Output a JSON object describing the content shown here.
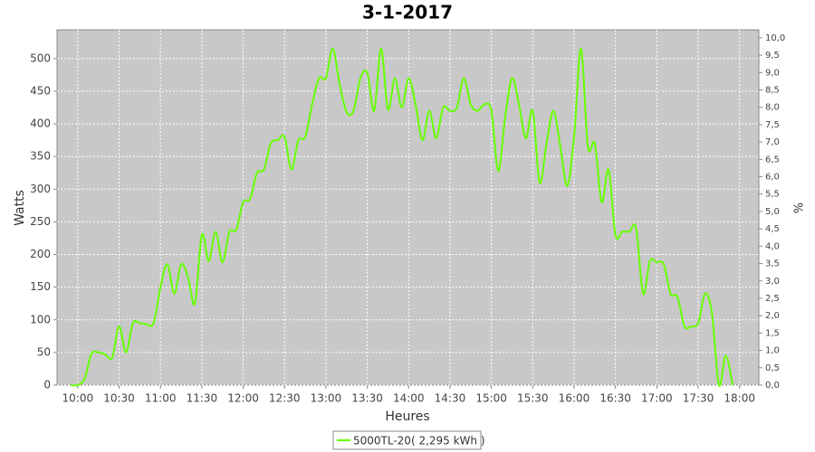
{
  "chart_data": {
    "type": "line",
    "title": "3-1-2017",
    "x_label": "Heures",
    "y_label": "Watts",
    "y2_label": "%",
    "x": [
      595,
      600,
      605,
      610,
      615,
      620,
      625,
      630,
      635,
      640,
      645,
      650,
      655,
      660,
      665,
      670,
      675,
      680,
      685,
      690,
      695,
      700,
      705,
      710,
      715,
      720,
      725,
      730,
      735,
      740,
      745,
      750,
      755,
      760,
      765,
      770,
      775,
      780,
      785,
      790,
      795,
      800,
      805,
      810,
      815,
      820,
      825,
      830,
      835,
      840,
      845,
      850,
      855,
      860,
      865,
      870,
      875,
      880,
      885,
      890,
      895,
      900,
      905,
      910,
      915,
      920,
      925,
      930,
      935,
      940,
      945,
      950,
      955,
      960,
      965,
      970,
      975,
      980,
      985,
      990,
      995,
      1000,
      1005,
      1010,
      1015,
      1020,
      1025,
      1030,
      1035,
      1040,
      1045,
      1050,
      1055,
      1060,
      1065,
      1070,
      1075
    ],
    "series": [
      {
        "name": "5000TL-20( 2,295 kWh )",
        "color": "#66ff00",
        "values": [
          0,
          0,
          10,
          48,
          50,
          47,
          42,
          90,
          50,
          95,
          95,
          93,
          95,
          150,
          185,
          140,
          185,
          165,
          125,
          230,
          190,
          235,
          188,
          235,
          238,
          280,
          285,
          325,
          330,
          370,
          375,
          380,
          330,
          375,
          380,
          430,
          470,
          470,
          515,
          460,
          418,
          420,
          470,
          478,
          420,
          515,
          422,
          470,
          425,
          470,
          430,
          375,
          420,
          378,
          425,
          420,
          425,
          470,
          430,
          420,
          430,
          420,
          328,
          410,
          470,
          430,
          378,
          420,
          310,
          370,
          420,
          365,
          305,
          380,
          515,
          365,
          370,
          280,
          330,
          230,
          235,
          235,
          240,
          140,
          190,
          188,
          185,
          140,
          135,
          90,
          90,
          95,
          140,
          110,
          0,
          45,
          0
        ]
      }
    ],
    "xlim": [
      585,
      1094
    ],
    "xticks": [
      {
        "value": 600,
        "label": "10:00"
      },
      {
        "value": 630,
        "label": "10:30"
      },
      {
        "value": 660,
        "label": "11:00"
      },
      {
        "value": 690,
        "label": "11:30"
      },
      {
        "value": 720,
        "label": "12:00"
      },
      {
        "value": 750,
        "label": "12:30"
      },
      {
        "value": 780,
        "label": "13:00"
      },
      {
        "value": 810,
        "label": "13:30"
      },
      {
        "value": 840,
        "label": "14:00"
      },
      {
        "value": 870,
        "label": "14:30"
      },
      {
        "value": 900,
        "label": "15:00"
      },
      {
        "value": 930,
        "label": "15:30"
      },
      {
        "value": 960,
        "label": "16:00"
      },
      {
        "value": 990,
        "label": "16:30"
      },
      {
        "value": 1020,
        "label": "17:00"
      },
      {
        "value": 1050,
        "label": "17:30"
      },
      {
        "value": 1080,
        "label": "18:00"
      }
    ],
    "ylim": [
      0,
      544
    ],
    "yticks": [
      0,
      50,
      100,
      150,
      200,
      250,
      300,
      350,
      400,
      450,
      500
    ],
    "y2lim": [
      0,
      10.23
    ],
    "y2ticks": [
      {
        "value": 0,
        "label": "0,0"
      },
      {
        "value": 0.5,
        "label": "0,5"
      },
      {
        "value": 1,
        "label": "1,0"
      },
      {
        "value": 1.5,
        "label": "1,5"
      },
      {
        "value": 2,
        "label": "2,0"
      },
      {
        "value": 2.5,
        "label": "2,5"
      },
      {
        "value": 3,
        "label": "3,0"
      },
      {
        "value": 3.5,
        "label": "3,5"
      },
      {
        "value": 4,
        "label": "4,0"
      },
      {
        "value": 4.5,
        "label": "4,5"
      },
      {
        "value": 5,
        "label": "5,0"
      },
      {
        "value": 5.5,
        "label": "5,5"
      },
      {
        "value": 6,
        "label": "6,0"
      },
      {
        "value": 6.5,
        "label": "6,5"
      },
      {
        "value": 7,
        "label": "7,0"
      },
      {
        "value": 7.5,
        "label": "7,5"
      },
      {
        "value": 8,
        "label": "8,0"
      },
      {
        "value": 8.5,
        "label": "8,5"
      },
      {
        "value": 9,
        "label": "9,0"
      },
      {
        "value": 9.5,
        "label": "9,5"
      },
      {
        "value": 10,
        "label": "10,0"
      }
    ],
    "grid": true
  }
}
